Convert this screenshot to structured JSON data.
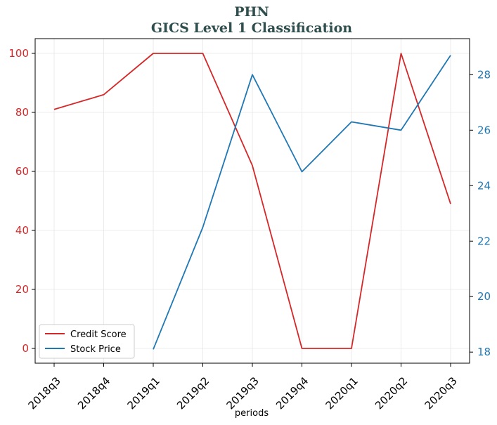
{
  "chart_data": {
    "type": "line",
    "title": "PHN",
    "subtitle": "GICS Level 1 Classification",
    "xlabel": "periods",
    "categories": [
      "2018q3",
      "2018q4",
      "2019q1",
      "2019q2",
      "2019q3",
      "2019q4",
      "2020q1",
      "2020q2",
      "2020q3"
    ],
    "series": [
      {
        "name": "Credit Score",
        "axis": "left",
        "color": "#d62728",
        "values": [
          81,
          86,
          100,
          100,
          62,
          0,
          0,
          100,
          49
        ]
      },
      {
        "name": "Stock Price",
        "axis": "right",
        "color": "#1f77b4",
        "values": [
          null,
          null,
          18.1,
          22.5,
          28.0,
          24.5,
          26.3,
          26.0,
          28.7
        ]
      }
    ],
    "y_left": {
      "lim": [
        -5,
        105
      ],
      "ticks": [
        0,
        20,
        40,
        60,
        80,
        100
      ],
      "color": "#d62728"
    },
    "y_right": {
      "lim": [
        17.6,
        29.3
      ],
      "ticks": [
        18,
        20,
        22,
        24,
        26,
        28
      ],
      "color": "#1f77b4"
    },
    "grid": true,
    "legend_position": "lower-left"
  }
}
